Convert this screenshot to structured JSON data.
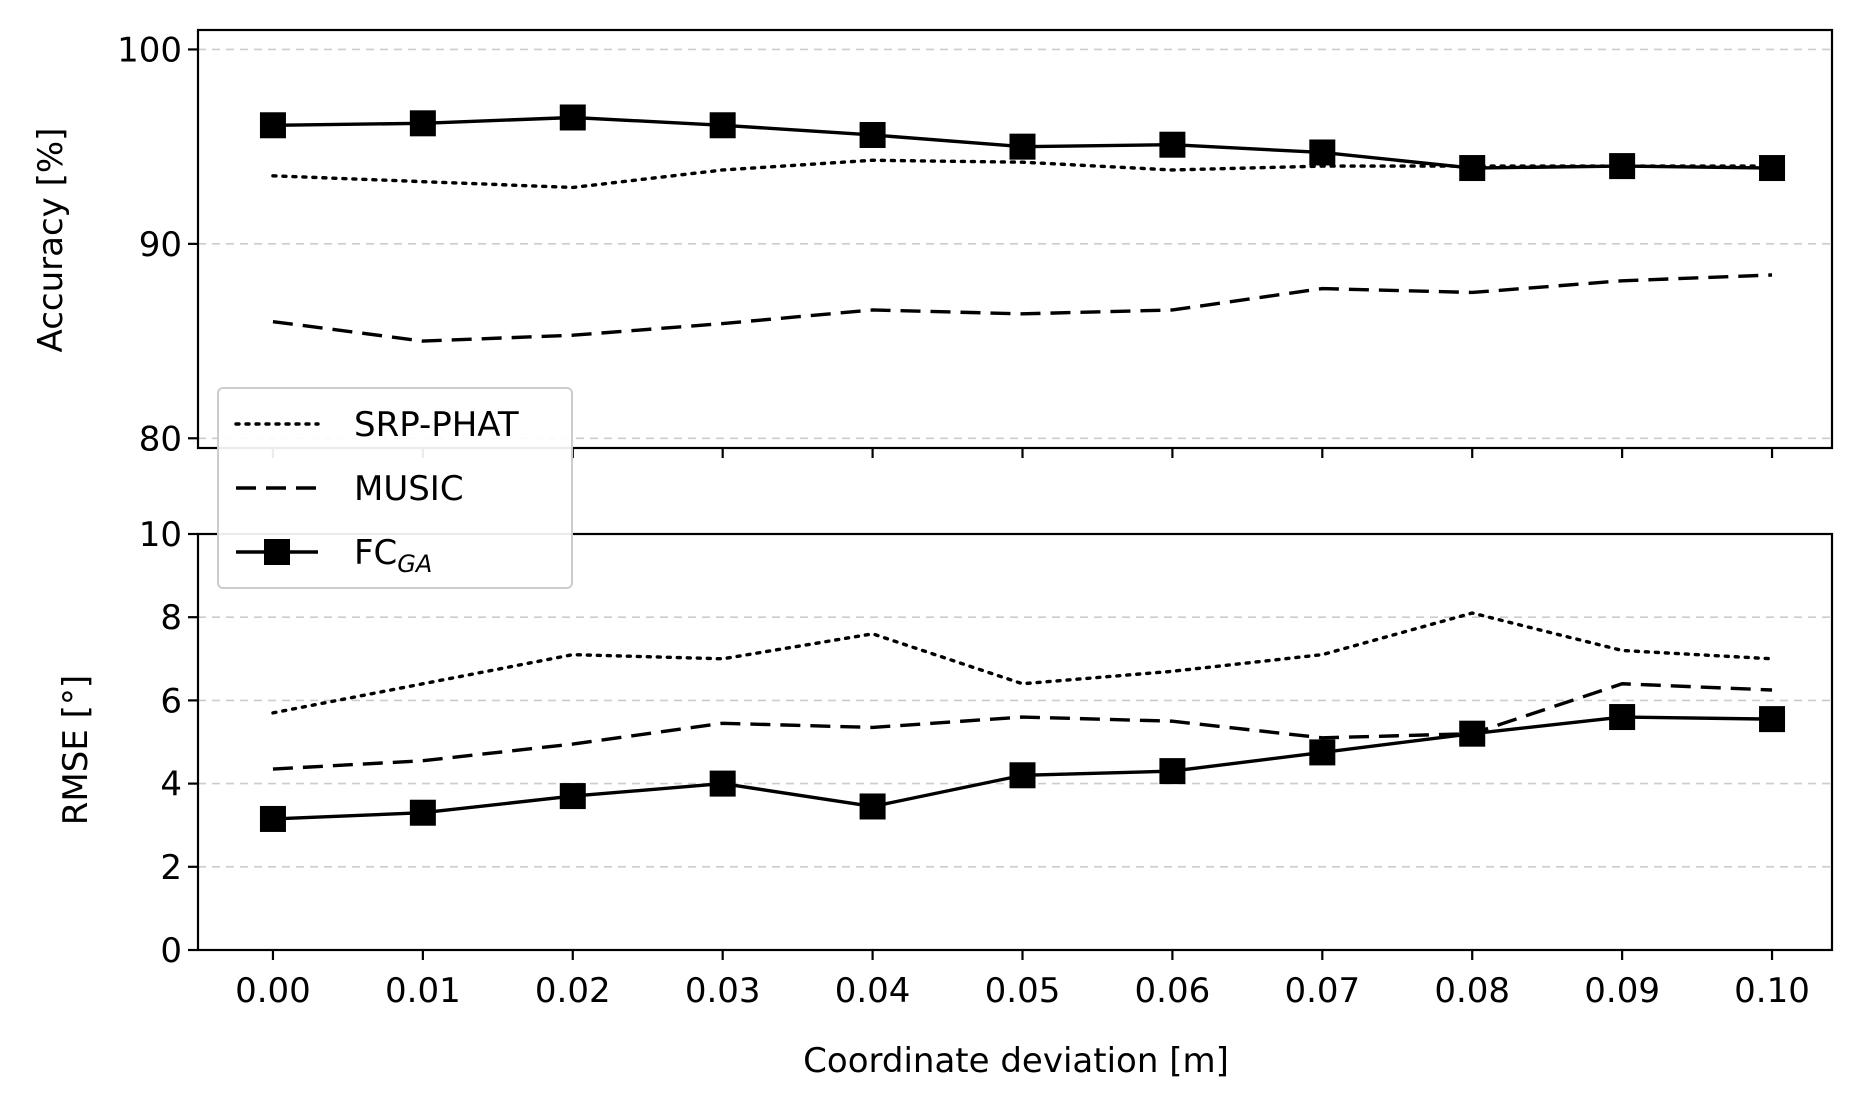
{
  "chart_data": [
    {
      "type": "line",
      "ylabel": "Accuracy [%]",
      "ylim": [
        79.5,
        101
      ],
      "yticks": [
        80,
        90,
        100
      ],
      "grid": true,
      "x": [
        0.0,
        0.01,
        0.02,
        0.03,
        0.04,
        0.05,
        0.06,
        0.07,
        0.08,
        0.09,
        0.1
      ],
      "series": [
        {
          "name": "SRP-PHAT",
          "style": "dotted",
          "values": [
            93.5,
            93.2,
            92.9,
            93.8,
            94.3,
            94.2,
            93.8,
            94.0,
            94.0,
            94.0,
            94.0
          ]
        },
        {
          "name": "MUSIC",
          "style": "dashed",
          "values": [
            86.0,
            85.0,
            85.3,
            85.9,
            86.6,
            86.4,
            86.6,
            87.7,
            87.5,
            88.1,
            88.4
          ]
        },
        {
          "name": "FC",
          "name_sub": "GA",
          "style": "solid-square",
          "values": [
            96.1,
            96.2,
            96.5,
            96.1,
            95.6,
            95.0,
            95.1,
            94.7,
            93.9,
            94.0,
            93.9
          ]
        }
      ]
    },
    {
      "type": "line",
      "xlabel": "Coordinate deviation [m]",
      "ylabel": "RMSE [°]",
      "ylim": [
        0,
        10
      ],
      "yticks": [
        0,
        2,
        4,
        6,
        8,
        10
      ],
      "grid": true,
      "x": [
        0.0,
        0.01,
        0.02,
        0.03,
        0.04,
        0.05,
        0.06,
        0.07,
        0.08,
        0.09,
        0.1
      ],
      "xticklabels": [
        "0.00",
        "0.01",
        "0.02",
        "0.03",
        "0.04",
        "0.05",
        "0.06",
        "0.07",
        "0.08",
        "0.09",
        "0.10"
      ],
      "series": [
        {
          "name": "SRP-PHAT",
          "style": "dotted",
          "values": [
            5.7,
            6.4,
            7.1,
            7.0,
            7.6,
            6.4,
            6.7,
            7.1,
            8.1,
            7.2,
            7.0
          ]
        },
        {
          "name": "MUSIC",
          "style": "dashed",
          "values": [
            4.35,
            4.55,
            4.95,
            5.45,
            5.35,
            5.6,
            5.5,
            5.1,
            5.2,
            6.4,
            6.25
          ]
        },
        {
          "name": "FC",
          "name_sub": "GA",
          "style": "solid-square",
          "values": [
            3.15,
            3.3,
            3.7,
            4.0,
            3.45,
            4.2,
            4.3,
            4.75,
            5.2,
            5.6,
            5.55
          ]
        }
      ]
    }
  ],
  "legend": {
    "position": "left, between panels",
    "entries": [
      {
        "label": "SRP-PHAT",
        "style": "dotted"
      },
      {
        "label": "MUSIC",
        "style": "dashed"
      },
      {
        "label": "FC",
        "sub": "GA",
        "style": "solid-square"
      }
    ]
  }
}
